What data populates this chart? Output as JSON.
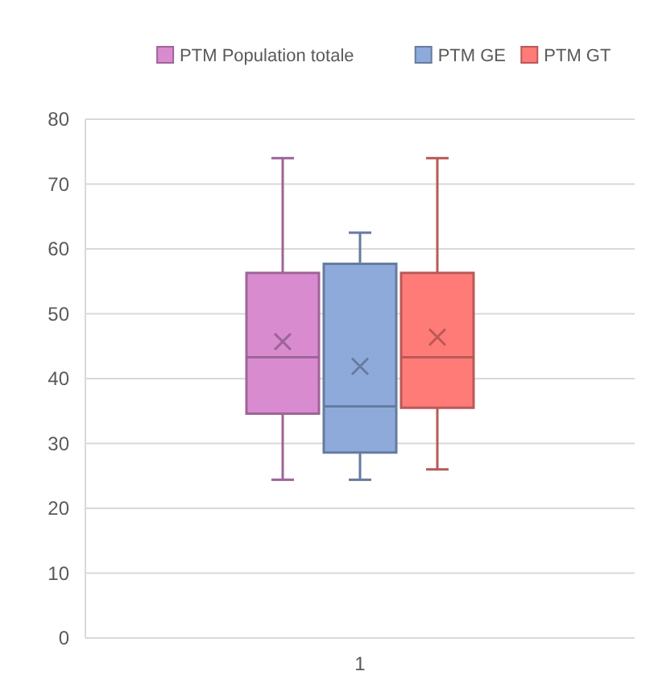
{
  "chart_data": {
    "type": "box",
    "categories": [
      "1"
    ],
    "series": [
      {
        "name": "PTM Population totale",
        "color": "#d98bd0",
        "boxes": [
          {
            "low": 24.4,
            "q1": 34.6,
            "median": 43.3,
            "q3": 56.3,
            "high": 74,
            "mean": 45.7
          }
        ]
      },
      {
        "name": "PTM GE",
        "color": "#8eaadb",
        "boxes": [
          {
            "low": 24.4,
            "q1": 28.6,
            "median": 35.7,
            "q3": 57.7,
            "high": 62.5,
            "mean": 41.9
          }
        ]
      },
      {
        "name": "PTM GT",
        "color": "#ff7b78",
        "boxes": [
          {
            "low": 26,
            "q1": 35.5,
            "median": 43.3,
            "q3": 56.3,
            "high": 74,
            "mean": 46.4
          }
        ]
      }
    ],
    "ylim": [
      0,
      80
    ],
    "yticks": [
      0,
      10,
      20,
      30,
      40,
      50,
      60,
      70,
      80
    ],
    "grid": "y",
    "legend": "top",
    "marker": "cross"
  }
}
